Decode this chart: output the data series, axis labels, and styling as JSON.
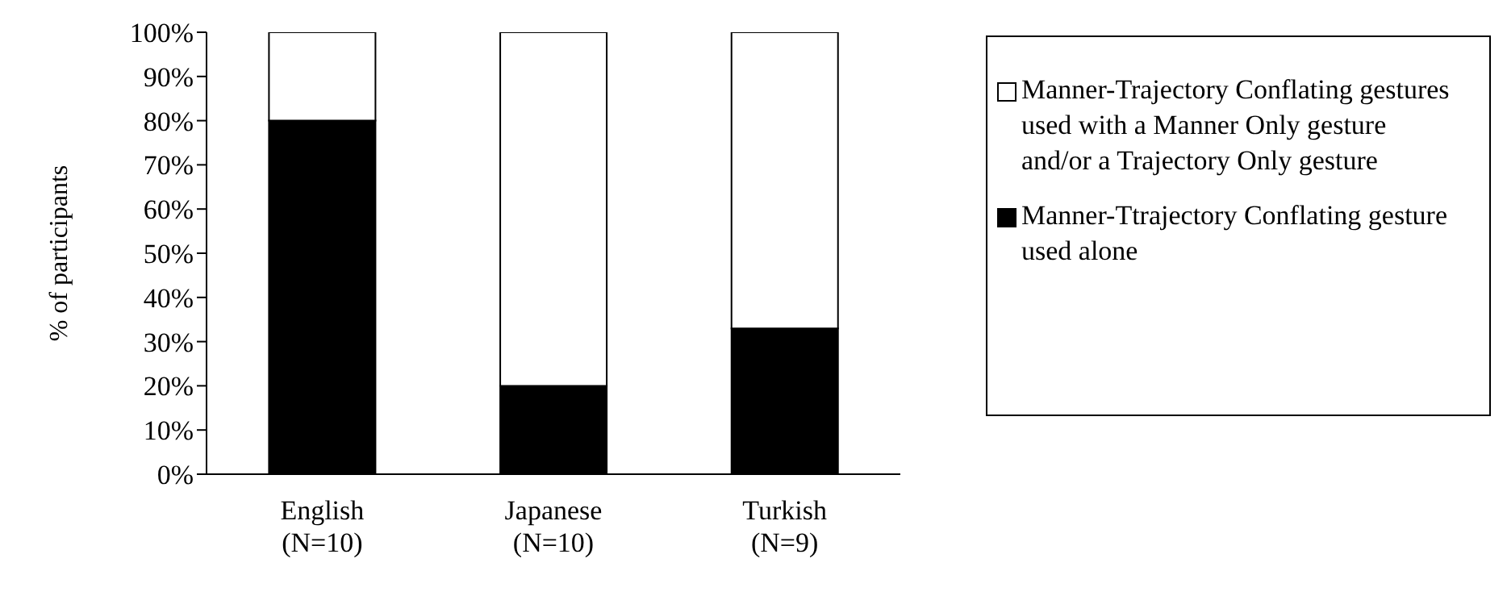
{
  "chart_data": {
    "type": "bar",
    "ylabel": "% of participants",
    "categories": [
      "English\n(N=10)",
      "Japanese\n(N=10)",
      "Turkish\n(N=9)"
    ],
    "stacked": true,
    "series": [
      {
        "name": "Manner-Ttrajectory Conflating gesture used alone",
        "color": "#000000",
        "values": [
          80,
          20,
          33
        ]
      },
      {
        "name": "Manner-Trajectory Conflating gestures used with a Manner Only gesture and/or a Trajectory Only gesture",
        "color": "#ffffff",
        "values": [
          20,
          80,
          67
        ]
      }
    ],
    "ylim": [
      0,
      100
    ],
    "yticks": [
      {
        "value": 0,
        "label": "0%"
      },
      {
        "value": 10,
        "label": "10%"
      },
      {
        "value": 20,
        "label": "20%"
      },
      {
        "value": 30,
        "label": "30%"
      },
      {
        "value": 40,
        "label": "40%"
      },
      {
        "value": 50,
        "label": "50%"
      },
      {
        "value": 60,
        "label": "60%"
      },
      {
        "value": 70,
        "label": "70%"
      },
      {
        "value": 80,
        "label": "80%"
      },
      {
        "value": 90,
        "label": "90%"
      },
      {
        "value": 100,
        "label": "100%"
      }
    ],
    "grid": false,
    "legend": "right"
  }
}
